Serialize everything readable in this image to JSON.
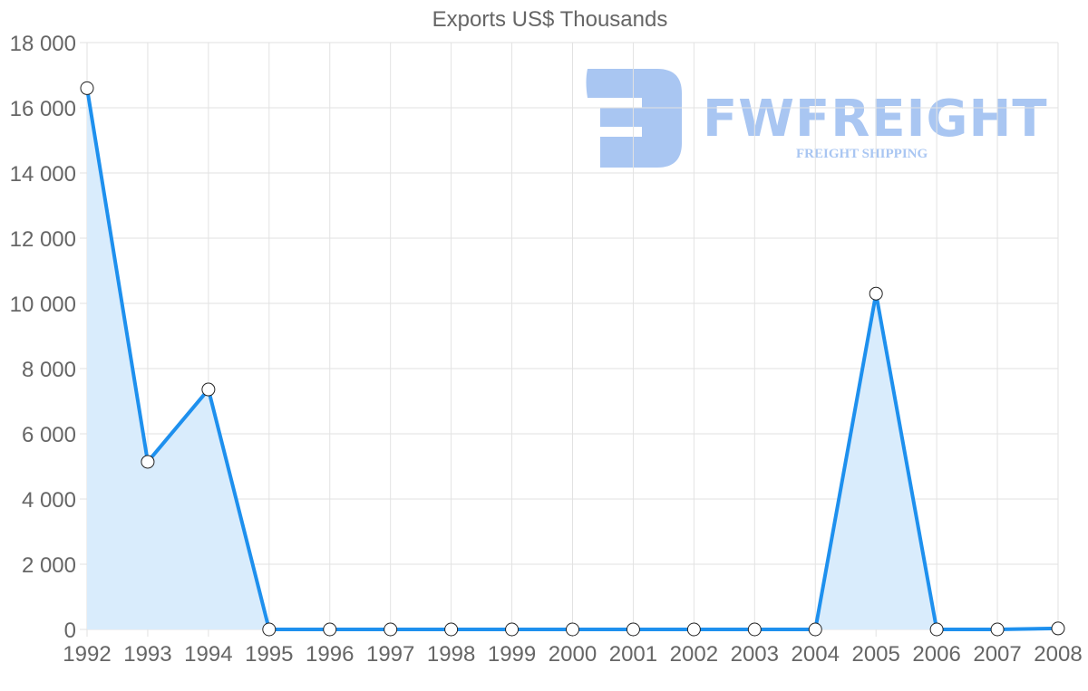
{
  "chart_data": {
    "type": "line",
    "title": "Exports US$ Thousands",
    "xlabel": "",
    "ylabel": "",
    "categories": [
      "1992",
      "1993",
      "1994",
      "1995",
      "1996",
      "1997",
      "1998",
      "1999",
      "2000",
      "2001",
      "2002",
      "2003",
      "2004",
      "2005",
      "2006",
      "2007",
      "2008"
    ],
    "series": [
      {
        "name": "Exports US$ Thousands",
        "values": [
          16600,
          5140,
          7360,
          0,
          0,
          0,
          0,
          0,
          0,
          0,
          0,
          0,
          0,
          10300,
          0,
          0,
          30
        ],
        "line_color": "#1e90ee",
        "fill_color": "#d9ecfc",
        "filled": true
      }
    ],
    "ylim": [
      0,
      18000
    ],
    "yticks": [
      0,
      2000,
      4000,
      6000,
      8000,
      10000,
      12000,
      14000,
      16000,
      18000
    ],
    "ytick_labels": [
      "0",
      "2 000",
      "4 000",
      "6 000",
      "8 000",
      "10 000",
      "12 000",
      "14 000",
      "16 000",
      "18 000"
    ],
    "grid": true,
    "legend": "none"
  },
  "watermark": {
    "brand": "FWFREIGHT",
    "tagline": "FREIGHT SHIPPING"
  }
}
